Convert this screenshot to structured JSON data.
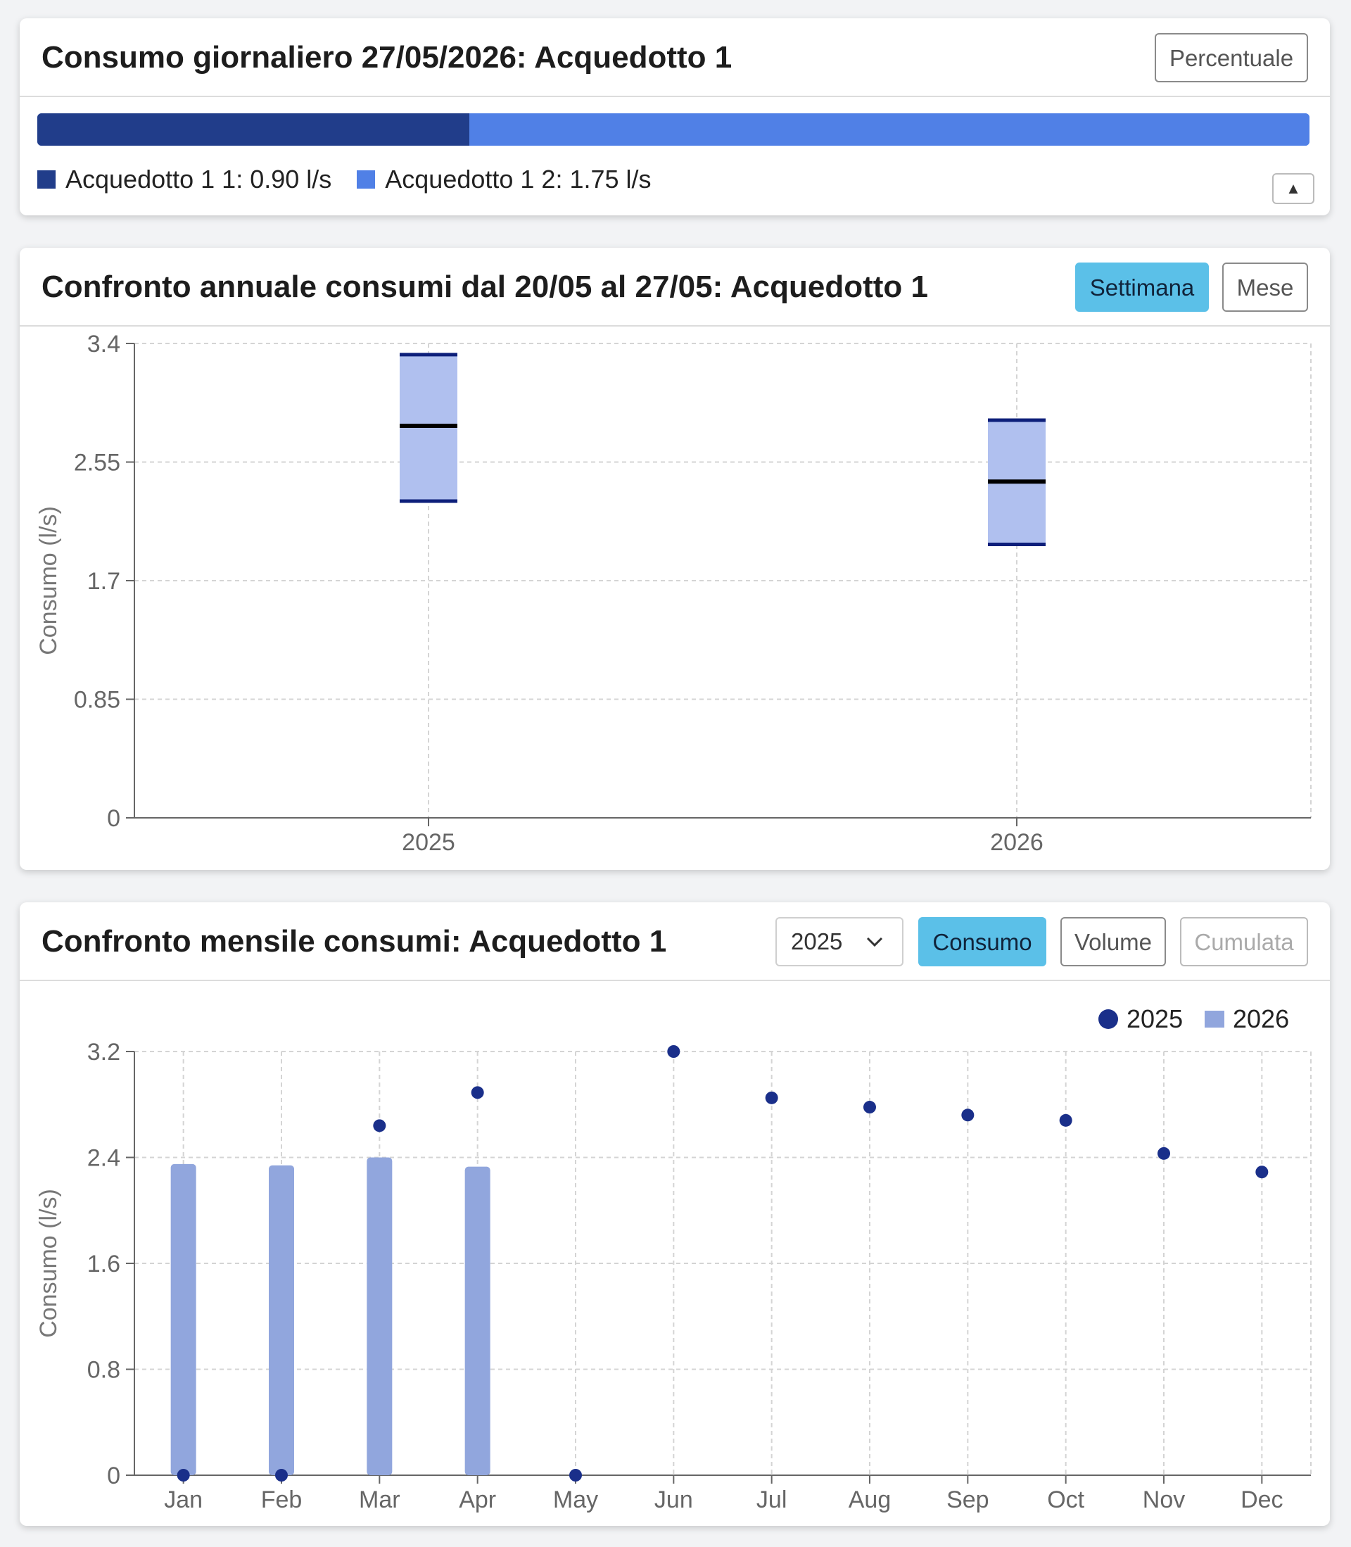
{
  "card1": {
    "title": "Consumo giornaliero 27/05/2026: Acquedotto 1",
    "percent_button": "Percentuale",
    "collapse_glyph": "▲",
    "segments": [
      {
        "label": "Acquedotto 1 1: 0.90 l/s",
        "value": 0.9,
        "color": "#213d8a"
      },
      {
        "label": "Acquedotto 1 2: 1.75 l/s",
        "value": 1.75,
        "color": "#5080e6"
      }
    ]
  },
  "card2": {
    "title": "Confronto annuale consumi dal 20/05 al 27/05: Acquedotto 1",
    "buttons": {
      "week": "Settimana",
      "month": "Mese"
    }
  },
  "card3": {
    "title": "Confronto mensile consumi: Acquedotto 1",
    "year_select": "2025",
    "chevron_icon": "chevron-down-icon",
    "buttons": {
      "consumption": "Consumo",
      "volume": "Volume",
      "cumulative": "Cumulata"
    }
  },
  "chart_data": [
    {
      "type": "box",
      "ylabel": "Consumo (l/s)",
      "ylim": [
        0,
        3.4
      ],
      "yticks": [
        "0",
        "0.85",
        "1.7",
        "2.55",
        "3.4"
      ],
      "ytick_values": [
        0,
        0.85,
        1.7,
        2.55,
        3.4
      ],
      "categories": [
        "2025",
        "2026"
      ],
      "boxes": [
        {
          "min": 2.27,
          "median": 2.81,
          "max": 3.32
        },
        {
          "min": 1.96,
          "median": 2.41,
          "max": 2.85
        }
      ],
      "colors": {
        "fill": "#b0c0ef",
        "whisker": "#0d1f7a",
        "median": "#000000"
      },
      "grid": true
    },
    {
      "type": "bar+scatter",
      "ylabel": "Consumo (l/s)",
      "ylim": [
        0,
        3.2
      ],
      "yticks": [
        "0",
        "0.8",
        "1.6",
        "2.4",
        "3.2"
      ],
      "ytick_values": [
        0,
        0.8,
        1.6,
        2.4,
        3.2
      ],
      "categories": [
        "Jan",
        "Feb",
        "Mar",
        "Apr",
        "May",
        "Jun",
        "Jul",
        "Aug",
        "Sep",
        "Oct",
        "Nov",
        "Dec"
      ],
      "series": [
        {
          "name": "2025",
          "kind": "scatter",
          "color": "#1a2f8a",
          "values": [
            0,
            0,
            2.64,
            2.89,
            0,
            3.2,
            2.85,
            2.78,
            2.72,
            2.68,
            2.43,
            2.29
          ]
        },
        {
          "name": "2026",
          "kind": "bar",
          "color": "#91a6dd",
          "values": [
            2.35,
            2.34,
            2.4,
            2.33,
            null,
            null,
            null,
            null,
            null,
            null,
            null,
            null
          ]
        }
      ],
      "legend": "top-right",
      "grid": true
    }
  ]
}
